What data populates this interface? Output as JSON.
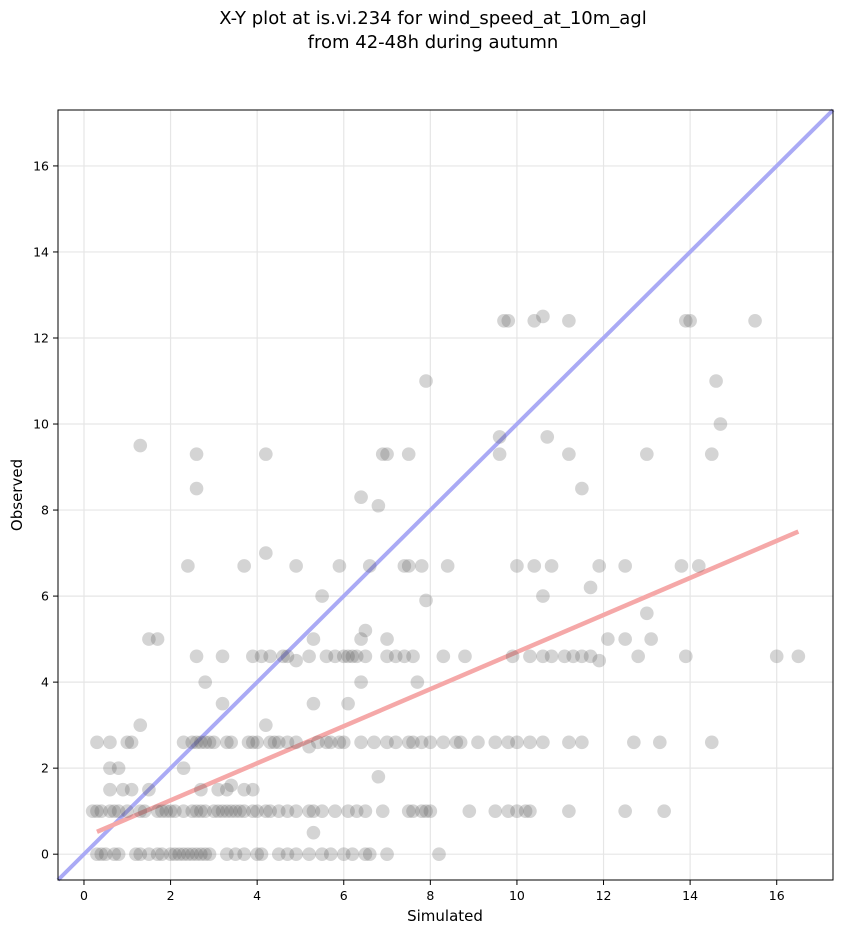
{
  "chart_data": {
    "type": "scatter",
    "title": "X-Y plot at is.vi.234 for wind_speed_at_10m_agl",
    "subtitle": "from 42-48h during autumn",
    "xlabel": "Simulated",
    "ylabel": "Observed",
    "xlim": [
      -0.6,
      17.3
    ],
    "ylim": [
      -0.6,
      17.3
    ],
    "x_ticks": [
      "0",
      "2",
      "4",
      "6",
      "8",
      "10",
      "12",
      "14",
      "16"
    ],
    "y_ticks": [
      "0",
      "2",
      "4",
      "6",
      "8",
      "10",
      "12",
      "14",
      "16"
    ],
    "grid": true,
    "colors": {
      "points": "#555555",
      "identity_line": "#aaaaf5",
      "fit_line": "#f5a8a8"
    },
    "fit_line": {
      "x": [
        0.3,
        16.5
      ],
      "y": [
        0.52,
        7.5
      ]
    },
    "identity_line": {
      "x": [
        -0.6,
        17.3
      ],
      "y": [
        -0.6,
        17.3
      ]
    },
    "points": [
      [
        0.3,
        0
      ],
      [
        0.4,
        0
      ],
      [
        0.5,
        0
      ],
      [
        0.7,
        0
      ],
      [
        0.8,
        0
      ],
      [
        1.2,
        0
      ],
      [
        1.3,
        0
      ],
      [
        1.5,
        0
      ],
      [
        1.7,
        0
      ],
      [
        1.8,
        0
      ],
      [
        2.0,
        0
      ],
      [
        2.1,
        0
      ],
      [
        2.2,
        0
      ],
      [
        2.3,
        0
      ],
      [
        2.4,
        0
      ],
      [
        2.5,
        0
      ],
      [
        2.6,
        0
      ],
      [
        2.7,
        0
      ],
      [
        2.8,
        0
      ],
      [
        2.9,
        0
      ],
      [
        3.3,
        0
      ],
      [
        3.5,
        0
      ],
      [
        3.7,
        0
      ],
      [
        4.0,
        0
      ],
      [
        4.1,
        0
      ],
      [
        4.5,
        0
      ],
      [
        4.7,
        0
      ],
      [
        4.9,
        0
      ],
      [
        5.2,
        0
      ],
      [
        5.5,
        0
      ],
      [
        5.7,
        0
      ],
      [
        6.0,
        0
      ],
      [
        6.2,
        0
      ],
      [
        6.5,
        0
      ],
      [
        6.6,
        0
      ],
      [
        7.0,
        0
      ],
      [
        8.2,
        0
      ],
      [
        0.2,
        1
      ],
      [
        0.3,
        1
      ],
      [
        0.4,
        1
      ],
      [
        0.6,
        1
      ],
      [
        0.7,
        1
      ],
      [
        0.8,
        1
      ],
      [
        1.0,
        1
      ],
      [
        1.3,
        1
      ],
      [
        1.4,
        1
      ],
      [
        1.7,
        1
      ],
      [
        1.8,
        1
      ],
      [
        1.9,
        1
      ],
      [
        2.0,
        1
      ],
      [
        2.1,
        1
      ],
      [
        2.3,
        1
      ],
      [
        2.5,
        1
      ],
      [
        2.6,
        1
      ],
      [
        2.7,
        1
      ],
      [
        2.8,
        1
      ],
      [
        3.0,
        1
      ],
      [
        3.1,
        1
      ],
      [
        3.2,
        1
      ],
      [
        3.3,
        1
      ],
      [
        3.4,
        1
      ],
      [
        3.5,
        1
      ],
      [
        3.6,
        1
      ],
      [
        3.7,
        1
      ],
      [
        3.9,
        1
      ],
      [
        4.0,
        1
      ],
      [
        4.2,
        1
      ],
      [
        4.3,
        1
      ],
      [
        4.5,
        1
      ],
      [
        4.7,
        1
      ],
      [
        4.9,
        1
      ],
      [
        5.2,
        1
      ],
      [
        5.3,
        1
      ],
      [
        5.5,
        1
      ],
      [
        5.8,
        1
      ],
      [
        6.1,
        1
      ],
      [
        6.3,
        1
      ],
      [
        6.5,
        1
      ],
      [
        6.9,
        1
      ],
      [
        7.5,
        1
      ],
      [
        7.6,
        1
      ],
      [
        7.8,
        1
      ],
      [
        7.9,
        1
      ],
      [
        8.0,
        1
      ],
      [
        8.9,
        1
      ],
      [
        9.5,
        1
      ],
      [
        9.8,
        1
      ],
      [
        10.0,
        1
      ],
      [
        10.2,
        1
      ],
      [
        10.3,
        1
      ],
      [
        11.2,
        1
      ],
      [
        12.5,
        1
      ],
      [
        13.4,
        1
      ],
      [
        0.6,
        1.5
      ],
      [
        0.9,
        1.5
      ],
      [
        1.1,
        1.5
      ],
      [
        1.5,
        1.5
      ],
      [
        2.7,
        1.5
      ],
      [
        3.1,
        1.5
      ],
      [
        3.3,
        1.5
      ],
      [
        3.4,
        1.6
      ],
      [
        3.7,
        1.5
      ],
      [
        3.9,
        1.5
      ],
      [
        0.6,
        2
      ],
      [
        0.8,
        2
      ],
      [
        2.3,
        2
      ],
      [
        6.8,
        1.8
      ],
      [
        5.3,
        0.5
      ],
      [
        0.3,
        2.6
      ],
      [
        0.6,
        2.6
      ],
      [
        1.0,
        2.6
      ],
      [
        1.1,
        2.6
      ],
      [
        2.3,
        2.6
      ],
      [
        2.5,
        2.6
      ],
      [
        2.6,
        2.6
      ],
      [
        2.7,
        2.6
      ],
      [
        2.8,
        2.6
      ],
      [
        2.9,
        2.6
      ],
      [
        3.0,
        2.6
      ],
      [
        3.3,
        2.6
      ],
      [
        3.4,
        2.6
      ],
      [
        3.8,
        2.6
      ],
      [
        3.9,
        2.6
      ],
      [
        4.0,
        2.6
      ],
      [
        4.3,
        2.6
      ],
      [
        4.4,
        2.6
      ],
      [
        4.5,
        2.6
      ],
      [
        4.7,
        2.6
      ],
      [
        4.9,
        2.6
      ],
      [
        5.2,
        2.5
      ],
      [
        5.4,
        2.6
      ],
      [
        5.6,
        2.6
      ],
      [
        5.7,
        2.6
      ],
      [
        5.9,
        2.6
      ],
      [
        6.0,
        2.6
      ],
      [
        6.4,
        2.6
      ],
      [
        6.7,
        2.6
      ],
      [
        7.0,
        2.6
      ],
      [
        7.2,
        2.6
      ],
      [
        7.5,
        2.6
      ],
      [
        7.6,
        2.6
      ],
      [
        7.8,
        2.6
      ],
      [
        8.0,
        2.6
      ],
      [
        8.3,
        2.6
      ],
      [
        8.6,
        2.6
      ],
      [
        8.7,
        2.6
      ],
      [
        9.1,
        2.6
      ],
      [
        9.5,
        2.6
      ],
      [
        9.8,
        2.6
      ],
      [
        10.0,
        2.6
      ],
      [
        10.3,
        2.6
      ],
      [
        10.6,
        2.6
      ],
      [
        11.2,
        2.6
      ],
      [
        11.5,
        2.6
      ],
      [
        12.7,
        2.6
      ],
      [
        13.3,
        2.6
      ],
      [
        14.5,
        2.6
      ],
      [
        1.3,
        3
      ],
      [
        3.2,
        3.5
      ],
      [
        4.2,
        3
      ],
      [
        5.3,
        3.5
      ],
      [
        6.1,
        3.5
      ],
      [
        2.8,
        4
      ],
      [
        6.4,
        4
      ],
      [
        7.7,
        4
      ],
      [
        1.5,
        5
      ],
      [
        1.7,
        5
      ],
      [
        5.3,
        5
      ],
      [
        6.4,
        5
      ],
      [
        7.0,
        5
      ],
      [
        6.5,
        5.2
      ],
      [
        10.6,
        6
      ],
      [
        5.5,
        6
      ],
      [
        7.9,
        5.9
      ],
      [
        11.7,
        6.2
      ],
      [
        12.1,
        5
      ],
      [
        12.5,
        5
      ],
      [
        13.0,
        5.6
      ],
      [
        13.1,
        5
      ],
      [
        2.6,
        4.6
      ],
      [
        3.2,
        4.6
      ],
      [
        3.9,
        4.6
      ],
      [
        4.1,
        4.6
      ],
      [
        4.3,
        4.6
      ],
      [
        4.6,
        4.6
      ],
      [
        4.7,
        4.6
      ],
      [
        4.9,
        4.5
      ],
      [
        5.2,
        4.6
      ],
      [
        5.6,
        4.6
      ],
      [
        5.8,
        4.6
      ],
      [
        6.0,
        4.6
      ],
      [
        6.1,
        4.6
      ],
      [
        6.2,
        4.6
      ],
      [
        6.3,
        4.6
      ],
      [
        6.5,
        4.6
      ],
      [
        7.0,
        4.6
      ],
      [
        7.2,
        4.6
      ],
      [
        7.4,
        4.6
      ],
      [
        7.6,
        4.6
      ],
      [
        8.3,
        4.6
      ],
      [
        8.8,
        4.6
      ],
      [
        9.9,
        4.6
      ],
      [
        10.3,
        4.6
      ],
      [
        10.6,
        4.6
      ],
      [
        10.8,
        4.6
      ],
      [
        11.1,
        4.6
      ],
      [
        11.3,
        4.6
      ],
      [
        11.5,
        4.6
      ],
      [
        11.7,
        4.6
      ],
      [
        11.9,
        4.5
      ],
      [
        12.8,
        4.6
      ],
      [
        13.9,
        4.6
      ],
      [
        16.0,
        4.6
      ],
      [
        16.5,
        4.6
      ],
      [
        2.4,
        6.7
      ],
      [
        3.7,
        6.7
      ],
      [
        4.2,
        7
      ],
      [
        4.9,
        6.7
      ],
      [
        5.9,
        6.7
      ],
      [
        6.6,
        6.7
      ],
      [
        7.4,
        6.7
      ],
      [
        7.5,
        6.7
      ],
      [
        7.8,
        6.7
      ],
      [
        8.4,
        6.7
      ],
      [
        10.0,
        6.7
      ],
      [
        10.4,
        6.7
      ],
      [
        10.8,
        6.7
      ],
      [
        11.9,
        6.7
      ],
      [
        12.5,
        6.7
      ],
      [
        13.8,
        6.7
      ],
      [
        14.2,
        6.7
      ],
      [
        1.3,
        9.5
      ],
      [
        2.6,
        9.3
      ],
      [
        2.6,
        8.5
      ],
      [
        4.2,
        9.3
      ],
      [
        6.4,
        8.3
      ],
      [
        6.8,
        8.1
      ],
      [
        6.9,
        9.3
      ],
      [
        7.0,
        9.3
      ],
      [
        7.5,
        9.3
      ],
      [
        7.9,
        11
      ],
      [
        9.6,
        9.7
      ],
      [
        9.6,
        9.3
      ],
      [
        10.7,
        9.7
      ],
      [
        11.2,
        9.3
      ],
      [
        11.5,
        8.5
      ],
      [
        13.0,
        9.3
      ],
      [
        14.5,
        9.3
      ],
      [
        14.6,
        11
      ],
      [
        14.7,
        10
      ],
      [
        9.7,
        12.4
      ],
      [
        9.8,
        12.4
      ],
      [
        10.4,
        12.4
      ],
      [
        10.6,
        12.5
      ],
      [
        11.2,
        12.4
      ],
      [
        13.9,
        12.4
      ],
      [
        14.0,
        12.4
      ],
      [
        15.5,
        12.4
      ]
    ]
  }
}
